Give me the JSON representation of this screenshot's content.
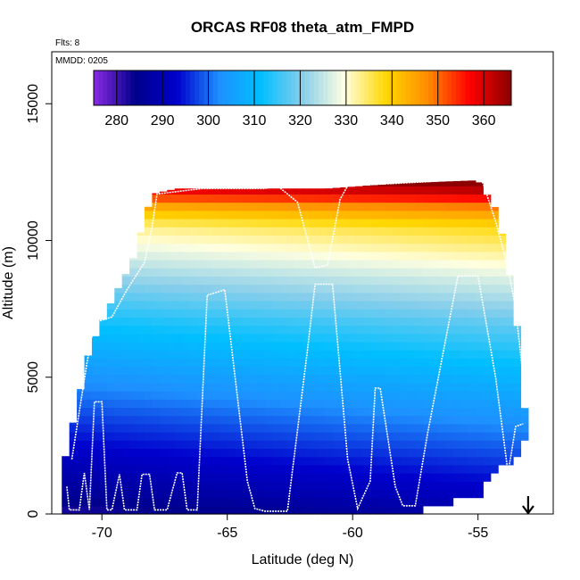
{
  "chart_data": {
    "type": "heatmap",
    "title": "ORCAS RF08 theta_atm_FMPD",
    "xlabel": "Latitude (deg N)",
    "ylabel": "Altitude (m)",
    "xlim": [
      -72,
      -52
    ],
    "ylim": [
      0,
      16900
    ],
    "x_ticks": [
      -70,
      -65,
      -60,
      -55
    ],
    "y_ticks": [
      0,
      5000,
      10000,
      15000
    ],
    "x_tick_labels": [
      "-70",
      "-65",
      "-60",
      "-55"
    ],
    "y_tick_labels": [
      "0",
      "5000",
      "10000",
      "15000"
    ],
    "flights_label": "Flts: 8",
    "mmdd_label": "MMDD: 0205",
    "colorbar": {
      "range": [
        275,
        366
      ],
      "ticks": [
        280,
        290,
        300,
        310,
        320,
        330,
        340,
        350,
        360
      ],
      "tick_labels": [
        "280",
        "290",
        "300",
        "310",
        "320",
        "330",
        "340",
        "350",
        "360"
      ],
      "colors": [
        "#8a2be2",
        "#00008b",
        "#0000cd",
        "#1e90ff",
        "#00bfff",
        "#87ceeb",
        "#ffffe0",
        "#ffd700",
        "#ff8c00",
        "#ff0000",
        "#8b0000"
      ]
    },
    "field": {
      "column_extent_lat": [
        -71.6,
        -53.1
      ],
      "column_top_alt": [
        [
          -71.6,
          1500
        ],
        [
          -70.5,
          6000
        ],
        [
          -70.0,
          7000
        ],
        [
          -69.5,
          8000
        ],
        [
          -68.8,
          9200
        ],
        [
          -68.0,
          11700
        ],
        [
          -67.0,
          11900
        ],
        [
          -63.0,
          11900
        ],
        [
          -61.0,
          11900
        ],
        [
          -58.0,
          12100
        ],
        [
          -55.0,
          12200
        ],
        [
          -54.2,
          11000
        ],
        [
          -53.8,
          9000
        ],
        [
          -53.5,
          7500
        ],
        [
          -53.3,
          5000
        ],
        [
          -53.1,
          3500
        ]
      ],
      "column_bottom_alt": [
        [
          -71.6,
          0
        ],
        [
          -64.0,
          0
        ],
        [
          -63.5,
          100
        ],
        [
          -59.0,
          150
        ],
        [
          -57.5,
          250
        ],
        [
          -56.5,
          500
        ],
        [
          -55.0,
          800
        ],
        [
          -54.5,
          1500
        ],
        [
          -53.8,
          2000
        ],
        [
          -53.1,
          2800
        ]
      ],
      "theta_profile": [
        [
          0,
          282
        ],
        [
          800,
          286
        ],
        [
          2500,
          293
        ],
        [
          5000,
          303
        ],
        [
          7000,
          312
        ],
        [
          8500,
          320
        ],
        [
          9500,
          326
        ],
        [
          10500,
          332
        ],
        [
          11200,
          342
        ],
        [
          11700,
          354
        ],
        [
          12200,
          362
        ]
      ]
    },
    "flight_track": [
      [
        -71.4,
        1000
      ],
      [
        -71.3,
        150
      ],
      [
        -70.9,
        150
      ],
      [
        -70.7,
        1500
      ],
      [
        -70.5,
        150
      ],
      [
        -70.3,
        4100
      ],
      [
        -70.0,
        4100
      ],
      [
        -69.8,
        150
      ],
      [
        -69.6,
        150
      ],
      [
        -69.3,
        1450
      ],
      [
        -69.1,
        150
      ],
      [
        -68.6,
        150
      ],
      [
        -68.4,
        1450
      ],
      [
        -68.1,
        1450
      ],
      [
        -67.9,
        150
      ],
      [
        -67.4,
        150
      ],
      [
        -67.0,
        1500
      ],
      [
        -66.8,
        1500
      ],
      [
        -66.6,
        150
      ],
      [
        -66.2,
        150
      ],
      [
        -65.8,
        8000
      ],
      [
        -65.1,
        8200
      ],
      [
        -64.2,
        1200
      ],
      [
        -63.9,
        200
      ],
      [
        -63.5,
        100
      ],
      [
        -62.6,
        100
      ],
      [
        -61.8,
        6000
      ],
      [
        -61.5,
        8400
      ],
      [
        -60.8,
        8400
      ],
      [
        -60.2,
        2000
      ],
      [
        -59.8,
        200
      ],
      [
        -59.3,
        1200
      ],
      [
        -59.1,
        4600
      ],
      [
        -58.9,
        4600
      ],
      [
        -58.3,
        1000
      ],
      [
        -58.0,
        300
      ],
      [
        -57.5,
        300
      ],
      [
        -57.0,
        3000
      ],
      [
        -55.8,
        8700
      ],
      [
        -55.0,
        8700
      ],
      [
        -54.3,
        5000
      ],
      [
        -53.8,
        1500
      ],
      [
        -53.5,
        3200
      ],
      [
        -53.2,
        3300
      ]
    ],
    "upper_track": [
      [
        -71.2,
        2000
      ],
      [
        -70.6,
        5500
      ],
      [
        -70.3,
        7000
      ],
      [
        -69.6,
        7200
      ],
      [
        -69.0,
        8200
      ],
      [
        -68.3,
        9200
      ],
      [
        -68.0,
        10500
      ],
      [
        -67.8,
        11700
      ],
      [
        -66.0,
        11900
      ],
      [
        -63.5,
        11900
      ],
      [
        -63.0,
        12000
      ],
      [
        -62.2,
        11400
      ],
      [
        -61.5,
        9000
      ],
      [
        -61.0,
        9100
      ],
      [
        -60.5,
        11500
      ],
      [
        -60.2,
        12000
      ],
      [
        -58.0,
        12100
      ],
      [
        -55.0,
        12250
      ],
      [
        -54.8,
        12100
      ],
      [
        -54.3,
        10700
      ],
      [
        -53.8,
        9000
      ],
      [
        -53.5,
        7500
      ],
      [
        -53.2,
        5000
      ]
    ],
    "arrow_lat": -53.0
  }
}
